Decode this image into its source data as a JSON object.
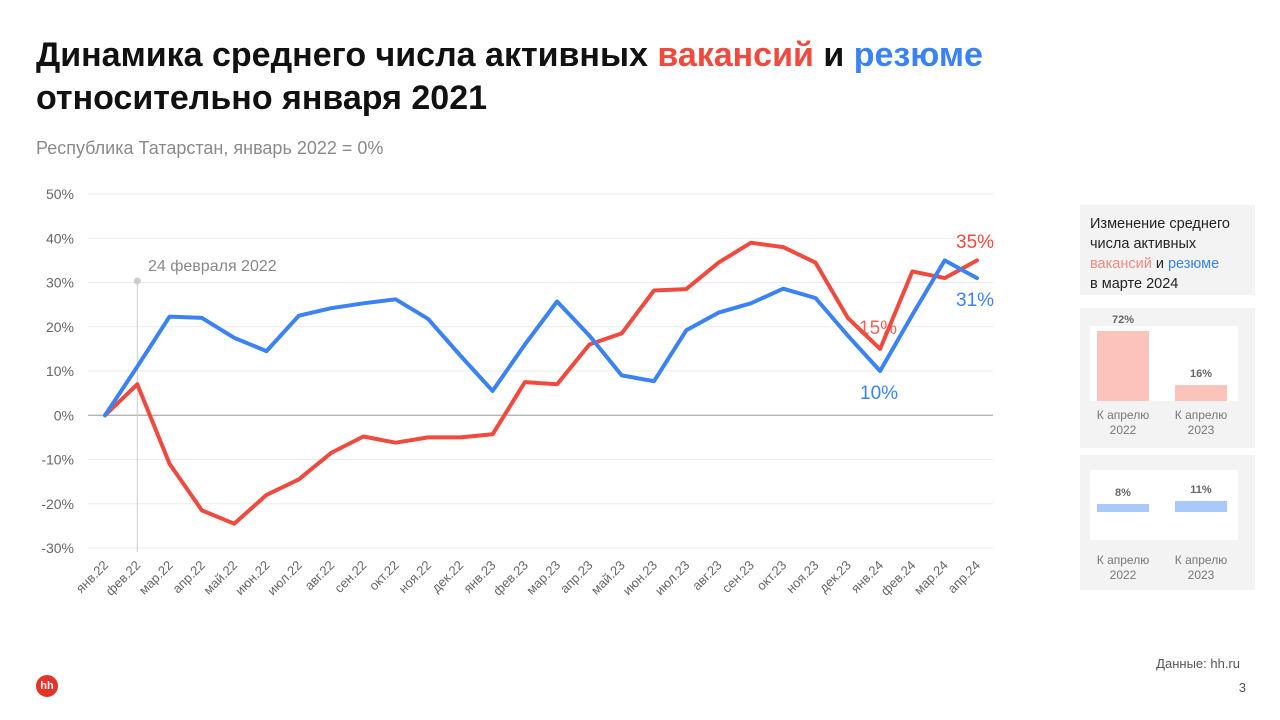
{
  "title": {
    "part1": "Динамика среднего числа активных ",
    "vacancies": "вакансий",
    "and": " и ",
    "resumes": "резюме",
    "part2": "относительно января 2021"
  },
  "subtitle": "Республика Татарстан, январь 2022 = 0%",
  "colors": {
    "vacancies": "#f04a3e",
    "resumes": "#3a82f6",
    "vac_light": "#fcc3bb",
    "res_light": "#a9c9fb"
  },
  "chart_data": {
    "type": "line",
    "title": "Динамика среднего числа активных вакансий и резюме относительно января 2021",
    "categories": [
      "янв.22",
      "фев.22",
      "мар.22",
      "апр.22",
      "май.22",
      "июн.22",
      "июл.22",
      "авг.22",
      "сен.22",
      "окт.22",
      "ноя.22",
      "дек.22",
      "янв.23",
      "фев.23",
      "мар.23",
      "апр.23",
      "май.23",
      "июн.23",
      "июл.23",
      "авг.23",
      "сен.23",
      "окт.23",
      "ноя.23",
      "дек.23",
      "янв.24",
      "фев.24",
      "мар.24",
      "апр.24"
    ],
    "y_ticks": [
      "50%",
      "40%",
      "30%",
      "20%",
      "10%",
      "0%",
      "-10%",
      "-20%",
      "-30%"
    ],
    "ylim": [
      -30,
      50
    ],
    "grid": true,
    "series": [
      {
        "name": "вакансий",
        "color": "#f04a3e",
        "values": [
          0,
          7,
          -11,
          -21.5,
          -24.5,
          -18,
          -14.5,
          -8.5,
          -4.8,
          -6.2,
          -5,
          -5,
          -4.3,
          7.5,
          7,
          16,
          18.5,
          28.2,
          28.5,
          34.5,
          39,
          38,
          34.5,
          22,
          15,
          32.5,
          31,
          35
        ]
      },
      {
        "name": "резюме",
        "color": "#3a82f6",
        "values": [
          0,
          11,
          22.3,
          22,
          17.5,
          14.5,
          22.5,
          24.2,
          25.3,
          26.2,
          21.8,
          13.5,
          5.5,
          16,
          25.7,
          18,
          9,
          7.7,
          19.2,
          23.2,
          25.3,
          28.6,
          26.5,
          18,
          10,
          22.7,
          35,
          31
        ]
      }
    ],
    "annotations": {
      "event_label": "24 февраля 2022",
      "vac_end": "35%",
      "res_end": "31%",
      "vac_jan24": "15%",
      "res_jan24": "10%"
    }
  },
  "side": {
    "line1": "Изменение среднего",
    "line2": "числа активных",
    "vacancies": "вакансий",
    "and": " и ",
    "resumes": "резюме",
    "line4": "в марте 2024",
    "vac_bars": [
      {
        "value": 72,
        "label_value": "72%",
        "label1": "К апрелю",
        "label2": "2022"
      },
      {
        "value": 16,
        "label_value": "16%",
        "label1": "К апрелю",
        "label2": "2023"
      }
    ],
    "res_bars": [
      {
        "value": 8,
        "label_value": "8%",
        "label1": "К апрелю",
        "label2": "2022"
      },
      {
        "value": 11,
        "label_value": "11%",
        "label1": "К апрелю",
        "label2": "2023"
      }
    ]
  },
  "footer": {
    "source": "Данные: hh.ru",
    "page": "3",
    "logo": "hh"
  }
}
